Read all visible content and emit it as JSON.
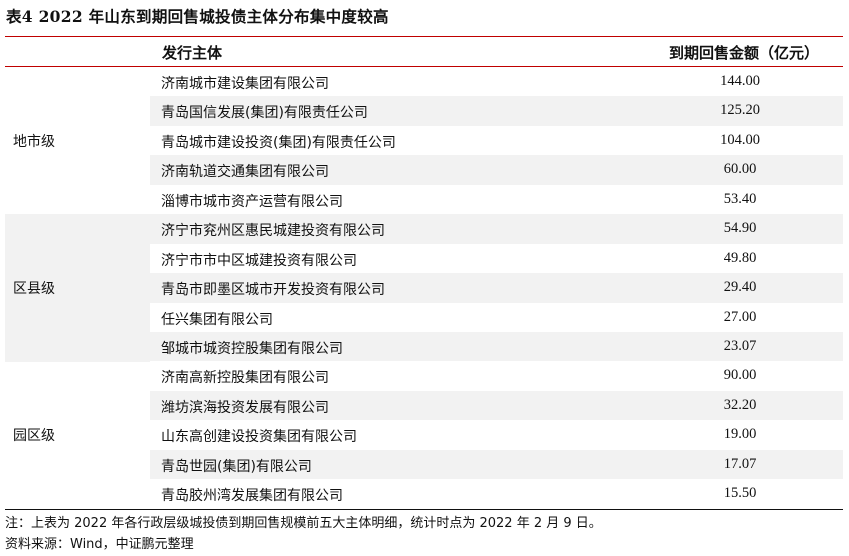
{
  "title": "表4  2022 年山东到期回售城投债主体分布集中度较高",
  "header": {
    "issuer": "发行主体",
    "amount": "到期回售金额（亿元）"
  },
  "groups": [
    {
      "label": "地市级",
      "rows": [
        {
          "name": "济南城市建设集团有限公司",
          "value": "144.00"
        },
        {
          "name": "青岛国信发展(集团)有限责任公司",
          "value": "125.20"
        },
        {
          "name": "青岛城市建设投资(集团)有限责任公司",
          "value": "104.00"
        },
        {
          "name": "济南轨道交通集团有限公司",
          "value": "60.00"
        },
        {
          "name": "淄博市城市资产运营有限公司",
          "value": "53.40"
        }
      ]
    },
    {
      "label": "区县级",
      "rows": [
        {
          "name": "济宁市兖州区惠民城建投资有限公司",
          "value": "54.90"
        },
        {
          "name": "济宁市市中区城建投资有限公司",
          "value": "49.80"
        },
        {
          "name": "青岛市即墨区城市开发投资有限公司",
          "value": "29.40"
        },
        {
          "name": "任兴集团有限公司",
          "value": "27.00"
        },
        {
          "name": "邹城市城资控股集团有限公司",
          "value": "23.07"
        }
      ]
    },
    {
      "label": "园区级",
      "rows": [
        {
          "name": "济南高新控股集团有限公司",
          "value": "90.00"
        },
        {
          "name": "潍坊滨海投资发展有限公司",
          "value": "32.20"
        },
        {
          "name": "山东高创建设投资集团有限公司",
          "value": "19.00"
        },
        {
          "name": "青岛世园(集团)有限公司",
          "value": "17.07"
        },
        {
          "name": "青岛胶州湾发展集团有限公司",
          "value": "15.50"
        }
      ]
    }
  ],
  "notes": {
    "note": "注：上表为 2022 年各行政层级城投债到期回售规模前五大主体明细，统计时点为 2022 年 2 月 9 日。",
    "source": "资料来源：Wind，中证鹏元整理"
  },
  "colors": {
    "rule": "#c00000",
    "shade": "#f2f2f2"
  }
}
